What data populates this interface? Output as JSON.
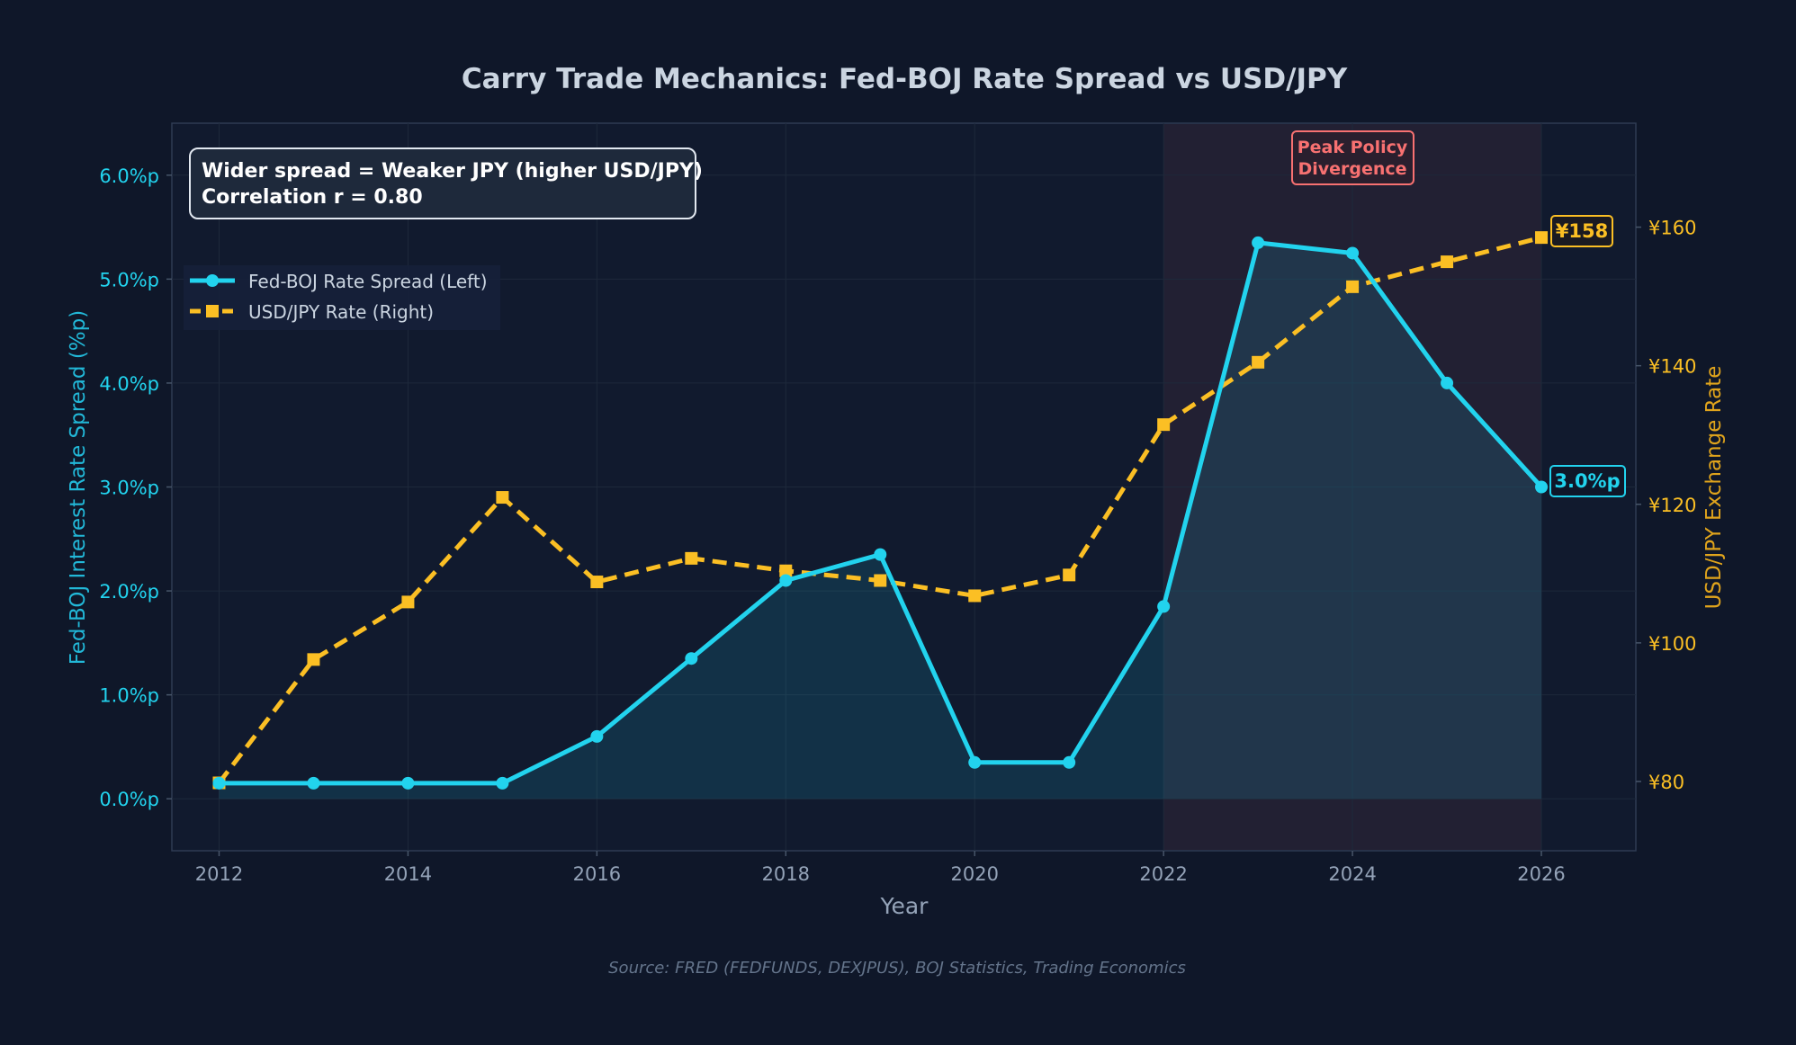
{
  "page": {
    "title": "Carry Trade Mechanics: Fed-BOJ Rate Spread vs USD/JPY",
    "source": "Source: FRED (FEDFUNDS, DEXJPUS), BOJ Statistics, Trading Economics"
  },
  "annotations": {
    "box_line1": "Wider spread = Weaker JPY (higher USD/JPY)",
    "box_line2": "Correlation r = 0.80",
    "region_line1": "Peak Policy",
    "region_line2": "Divergence",
    "end_label_left": "3.0%p",
    "end_label_right": "¥158"
  },
  "colors": {
    "background": "#0f1729",
    "spread": "#22d3ee",
    "usdjpy": "#fbbf24",
    "highlight": "#f87171",
    "axis_text": "#94a3b8",
    "title": "#cbd5e1"
  },
  "chart_data": {
    "type": "line",
    "title": "Carry Trade Mechanics: Fed-BOJ Rate Spread vs USD/JPY",
    "xlabel": "Year",
    "ylabel": "Fed-BOJ Interest Rate Spread (%p)",
    "y2label": "USD/JPY Exchange Rate",
    "x": [
      2012,
      2013,
      2014,
      2015,
      2016,
      2017,
      2018,
      2019,
      2020,
      2021,
      2022,
      2023,
      2024,
      2025,
      2026
    ],
    "xlim": [
      2011.5,
      2027
    ],
    "ylim": [
      -0.5,
      6.5
    ],
    "y2lim": [
      70,
      175
    ],
    "x_ticks": [
      2012,
      2014,
      2016,
      2018,
      2020,
      2022,
      2024,
      2026
    ],
    "x_tick_labels": [
      "2012",
      "2014",
      "2016",
      "2018",
      "2020",
      "2022",
      "2024",
      "2026"
    ],
    "y_ticks": [
      0,
      1,
      2,
      3,
      4,
      5,
      6
    ],
    "y_tick_labels": [
      "0.0%p",
      "1.0%p",
      "2.0%p",
      "3.0%p",
      "4.0%p",
      "5.0%p",
      "6.0%p"
    ],
    "y2_ticks": [
      80,
      100,
      120,
      140,
      160
    ],
    "y2_tick_labels": [
      "¥80",
      "¥100",
      "¥120",
      "¥140",
      "¥160"
    ],
    "grid": true,
    "legend_position": "upper-left",
    "shaded_region": {
      "x": [
        2022,
        2026
      ],
      "label": "Peak Policy Divergence"
    },
    "series": [
      {
        "name": "Fed-BOJ Rate Spread (Left)",
        "axis": "left",
        "style": "solid",
        "marker": "circle",
        "values": [
          0.15,
          0.15,
          0.15,
          0.15,
          0.6,
          1.35,
          2.1,
          2.35,
          0.35,
          0.35,
          1.85,
          5.35,
          5.25,
          4.0,
          3.0
        ]
      },
      {
        "name": "USD/JPY Rate (Right)",
        "axis": "right",
        "style": "dashed",
        "marker": "square",
        "values": [
          79.8,
          97.6,
          105.9,
          121.0,
          108.8,
          112.2,
          110.4,
          109.0,
          106.8,
          109.8,
          131.5,
          140.5,
          151.4,
          155.0,
          158.5
        ]
      }
    ]
  }
}
